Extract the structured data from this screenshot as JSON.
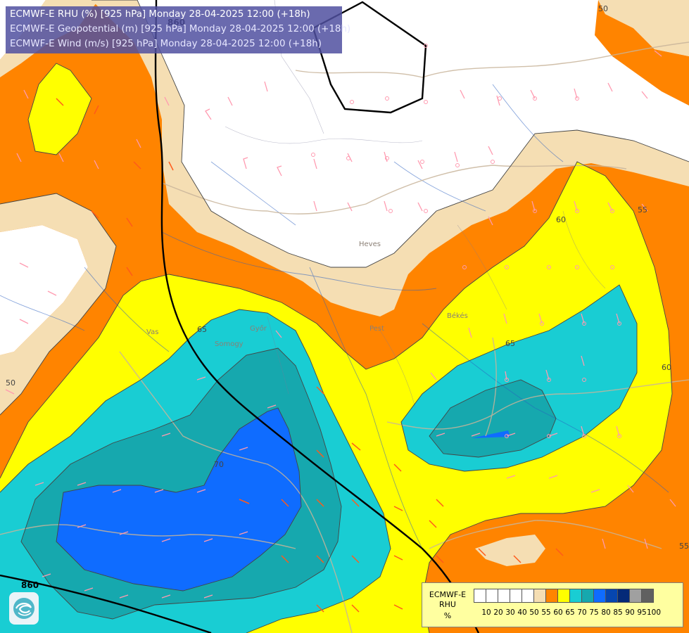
{
  "title": {
    "line1": "ECMWF-E RHU (%) [925 hPa] Monday 28-04-2025 12:00 (+18h)",
    "line2": "ECMWF-E Geopotential (m) [925 hPa] Monday 28-04-2025 12:00 (+18h)",
    "line3": "ECMWF-E Wind (m/s) [925 hPa] Monday 28-04-2025 12:00 (+18h)"
  },
  "legend": {
    "label1": "ECMWF-E",
    "label2": "RHU",
    "label3": "%",
    "ticks": [
      "10",
      "20",
      "30",
      "40",
      "50",
      "55",
      "60",
      "65",
      "70",
      "75",
      "80",
      "85",
      "90",
      "95",
      "100"
    ],
    "colors": [
      "#ffffff",
      "#ffffff",
      "#ffffff",
      "#ffffff",
      "#ffffff",
      "#f5deb3",
      "#ff8400",
      "#ffff00",
      "#19cdd3",
      "#16a8ae",
      "#0f6cff",
      "#0646b0",
      "#052a78",
      "#a0a0a0",
      "#606060"
    ]
  },
  "contour_labels": {
    "l50_top": "50",
    "l50_left": "50",
    "l55_right": "55",
    "l55_lower": "55",
    "l60_right": "60",
    "l60_mid": "60",
    "l65": "65",
    "l65_b": "65",
    "l70": "70"
  },
  "geopotential_labels": {
    "top": "860",
    "bottom": "860"
  },
  "place_labels": {
    "hevesi": "Heves",
    "vas": "Vas",
    "gyor": "Győr",
    "pest": "Pest",
    "bekes": "Békés",
    "somogy": "Somogy"
  },
  "logo_icon": "ecmwf-logo-icon",
  "wind_barb_colors": {
    "weak": "#ff9ab0",
    "strong": "#ff5a1a"
  }
}
